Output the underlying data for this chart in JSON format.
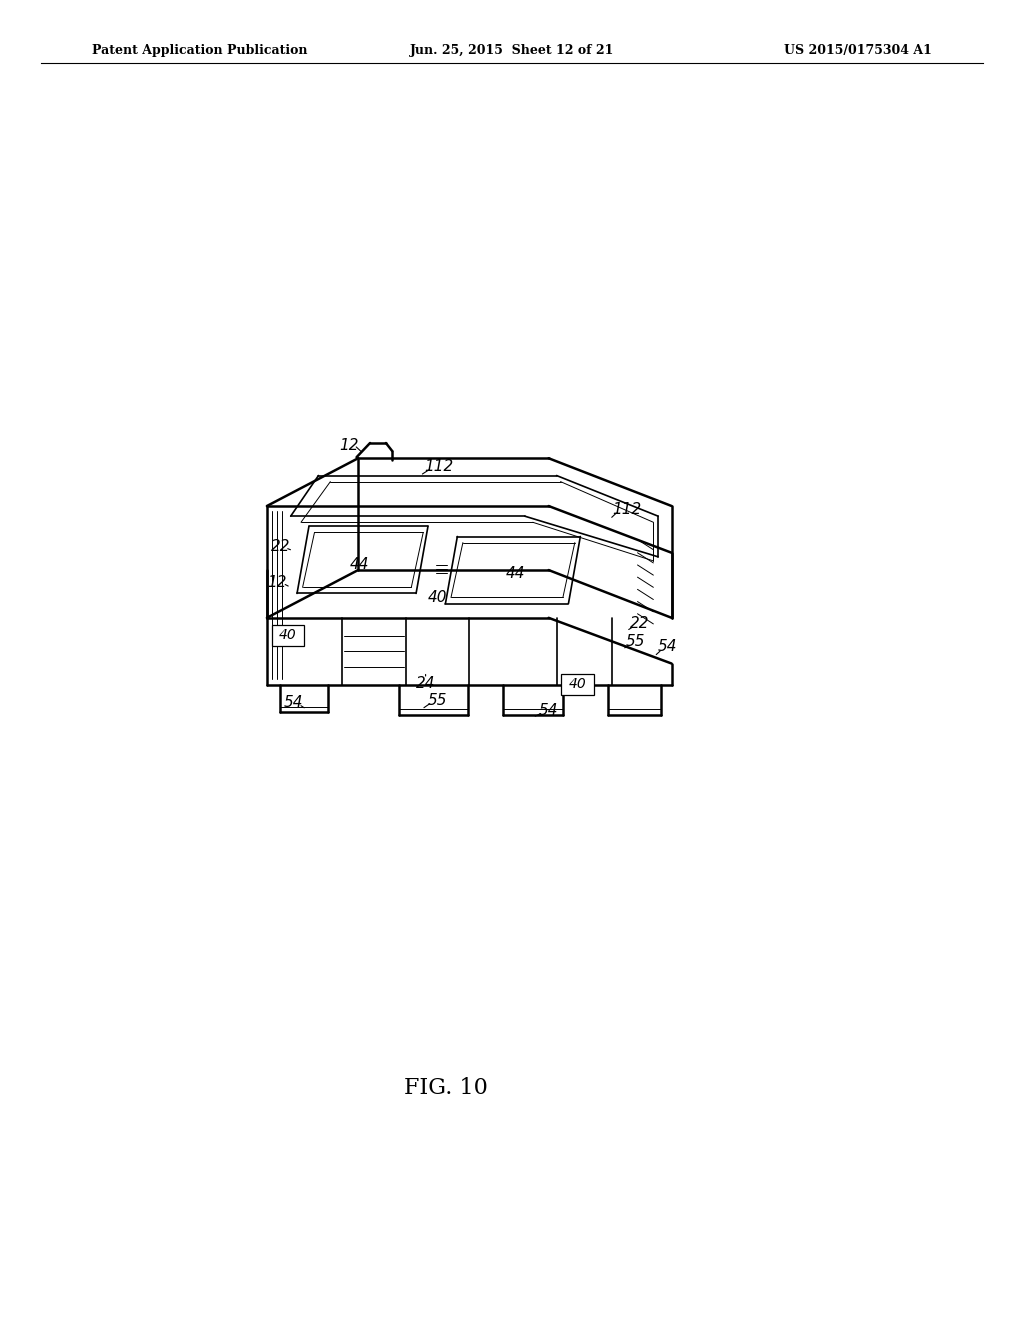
{
  "bg_color": "#ffffff",
  "fig_width": 10.24,
  "fig_height": 13.2,
  "header_left": "Patent Application Publication",
  "header_center": "Jun. 25, 2015  Sheet 12 of 21",
  "header_right": "US 2015/0175304 A1",
  "figure_label": "FIG. 10"
}
